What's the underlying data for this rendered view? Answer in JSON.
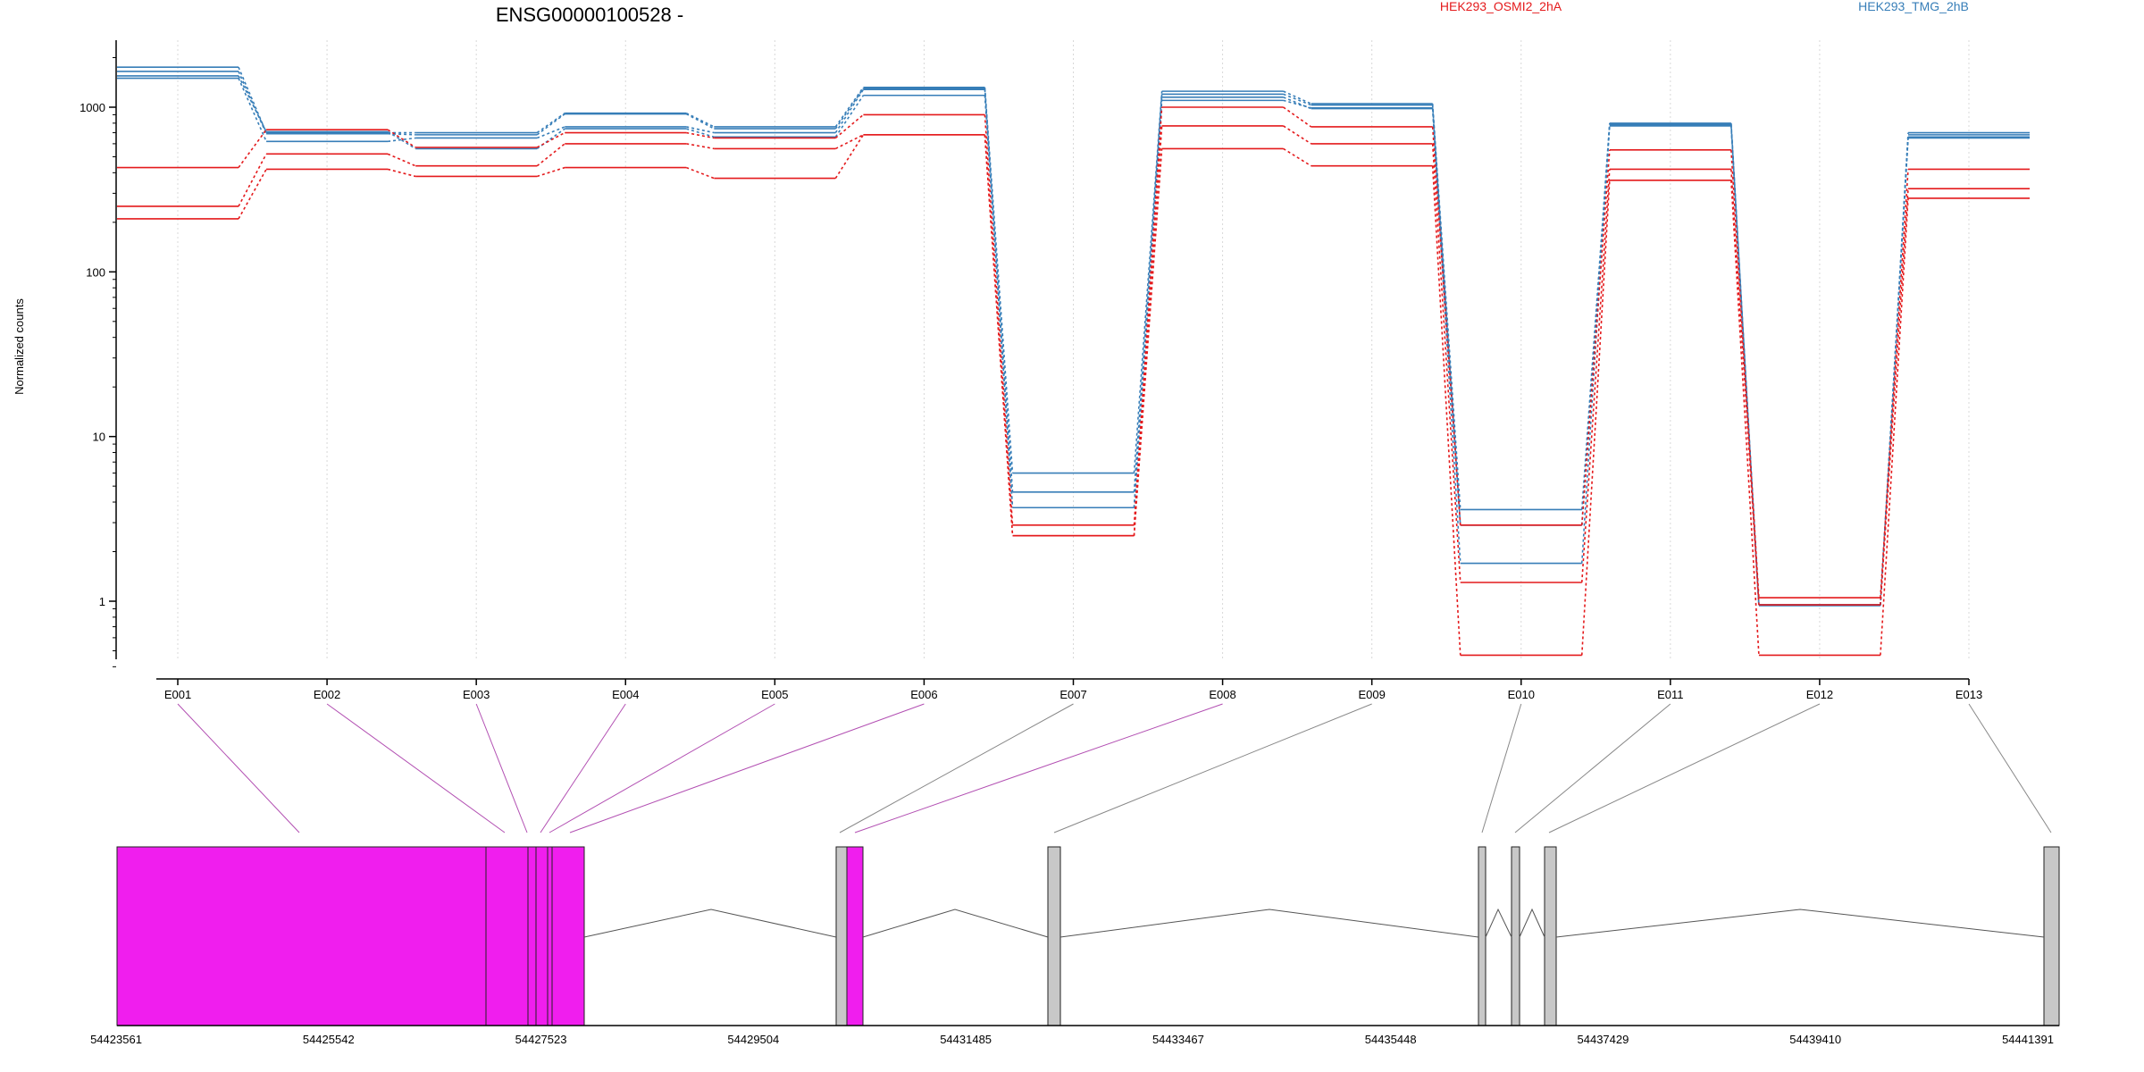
{
  "chart_data": {
    "type": "line",
    "title": "ENSG00000100528 -",
    "ylabel": "Normalized counts",
    "yscale": "log",
    "yticks": [
      1,
      10,
      100,
      1000
    ],
    "ytick_labels": [
      "1",
      "10",
      "100",
      "1000"
    ],
    "ylim": [
      0.4,
      2400
    ],
    "categories": [
      "E001",
      "E002",
      "E003",
      "E004",
      "E005",
      "E006",
      "E007",
      "E008",
      "E009",
      "E010",
      "E011",
      "E012",
      "E013"
    ],
    "legend": [
      {
        "label": "HEK293_OSMI2_2hA",
        "color": "#e41a1c"
      },
      {
        "label": "HEK293_TMG_2hB",
        "color": "#377eb8"
      }
    ],
    "legend_placement": "top-right",
    "grid": "vertical-dotted",
    "series": [
      {
        "color": "#377eb8",
        "values": [
          1750,
          700,
          700,
          920,
          760,
          1320,
          6.0,
          1250,
          1050,
          3.6,
          800,
          0.95,
          700
        ]
      },
      {
        "color": "#377eb8",
        "values": [
          1650,
          690,
          680,
          910,
          740,
          1300,
          4.6,
          1200,
          1030,
          2.9,
          790,
          0.95,
          680
        ]
      },
      {
        "color": "#377eb8",
        "values": [
          1500,
          620,
          650,
          760,
          700,
          1280,
          3.7,
          1150,
          980,
          1.7,
          780,
          0.95,
          650
        ]
      },
      {
        "color": "#377eb8",
        "values": [
          1550,
          710,
          560,
          740,
          660,
          1180,
          3.7,
          1100,
          990,
          2.9,
          770,
          0.94,
          660
        ]
      },
      {
        "color": "#e41a1c",
        "values": [
          430,
          730,
          570,
          700,
          650,
          900,
          2.9,
          1000,
          760,
          2.9,
          550,
          1.05,
          420
        ]
      },
      {
        "color": "#e41a1c",
        "values": [
          250,
          520,
          440,
          600,
          560,
          680,
          2.5,
          770,
          600,
          1.3,
          420,
          0.95,
          320
        ]
      },
      {
        "color": "#e41a1c",
        "values": [
          210,
          420,
          380,
          430,
          370,
          680,
          2.5,
          560,
          440,
          0.47,
          360,
          0.47,
          280
        ]
      }
    ]
  },
  "gene_model": {
    "genome_ticks": [
      "54423561",
      "54425542",
      "54427523",
      "54429504",
      "54431485",
      "54433467",
      "54435448",
      "54437429",
      "54439410",
      "54441391"
    ],
    "colors": {
      "tested_exon": "#f01eee",
      "other_exon": "#c8c8c8",
      "intron": "#555555",
      "link_tested": "#b24fb2",
      "link_other": "#888888"
    }
  }
}
